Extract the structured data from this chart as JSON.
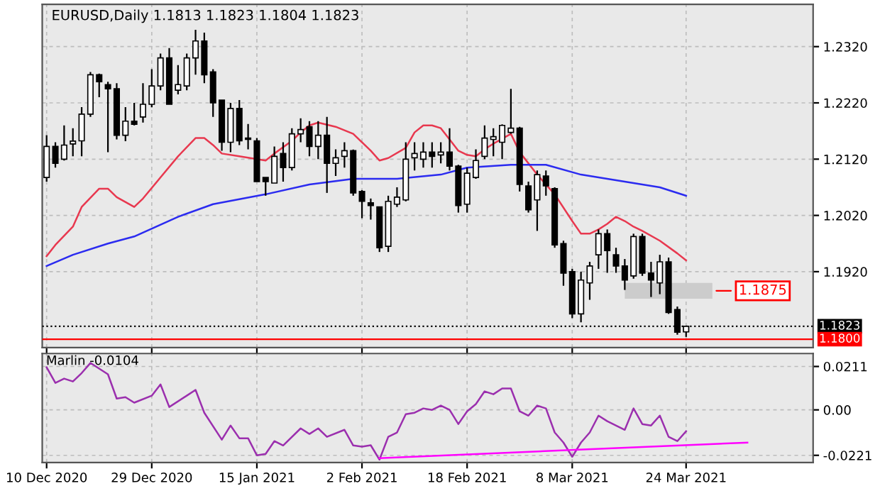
{
  "chart_data": [
    {
      "type": "candlestick",
      "title": "EURUSD,Daily 1.1813 1.1823 1.1804 1.1823",
      "categories": [
        null,
        null,
        null,
        null,
        null,
        null,
        null,
        null,
        null,
        null,
        null,
        null,
        null,
        null,
        null,
        null,
        null,
        null,
        null,
        null,
        null,
        null,
        null,
        null,
        null,
        null,
        null,
        null,
        null,
        null,
        null,
        null,
        null,
        null,
        null,
        null,
        null,
        null,
        null,
        null,
        null,
        null,
        null,
        null,
        null,
        null,
        null,
        null,
        null,
        null,
        null,
        null,
        null,
        null,
        null,
        null,
        null,
        null,
        null,
        null,
        null,
        null,
        null,
        null,
        null,
        null,
        null,
        null,
        null,
        null,
        null,
        null,
        null,
        null,
        null,
        null,
        null,
        null,
        null,
        null,
        null,
        null,
        null,
        null,
        null,
        null,
        null,
        null
      ],
      "ohlc": [
        [
          1.20875,
          1.21625,
          1.208,
          1.21425
        ],
        [
          1.21425,
          1.215,
          1.2105,
          1.21125
        ],
        [
          1.212,
          1.218,
          1.21175,
          1.2145
        ],
        [
          1.2147,
          1.2175,
          1.2125,
          1.2152
        ],
        [
          1.21525,
          1.22125,
          1.2125,
          1.22
        ],
        [
          1.22,
          1.2275,
          1.2195,
          1.227
        ],
        [
          1.227,
          1.2272,
          1.223,
          1.22575
        ],
        [
          1.22525,
          1.22575,
          1.21325,
          1.2245
        ],
        [
          1.2245,
          1.2255,
          1.2155,
          1.21625
        ],
        [
          1.21625,
          1.22125,
          1.2152,
          1.21875
        ],
        [
          1.21875,
          1.222,
          1.218,
          1.2182
        ],
        [
          1.2195,
          1.2255,
          1.2185,
          1.22175
        ],
        [
          1.22175,
          1.228,
          1.2212,
          1.225
        ],
        [
          1.225,
          1.23075,
          1.22425,
          1.23
        ],
        [
          1.23,
          1.23175,
          1.22175,
          1.22175
        ],
        [
          1.22425,
          1.2287,
          1.2235,
          1.22525
        ],
        [
          1.225,
          1.23075,
          1.22425,
          1.23
        ],
        [
          1.23,
          1.235,
          1.227,
          1.233
        ],
        [
          1.233,
          1.2345,
          1.2255,
          1.227
        ],
        [
          1.2275,
          1.228,
          1.2195,
          1.222
        ],
        [
          1.2225,
          1.2225,
          1.2135,
          1.215
        ],
        [
          1.215,
          1.222,
          1.21325,
          1.221
        ],
        [
          1.221,
          1.2225,
          1.2145,
          1.21525
        ],
        [
          1.21575,
          1.21825,
          1.21375,
          1.2155
        ],
        [
          1.21525,
          1.21575,
          1.208,
          1.208
        ],
        [
          1.20875,
          1.20875,
          1.2055,
          1.208
        ],
        [
          1.20775,
          1.21425,
          1.20775,
          1.2125
        ],
        [
          1.213,
          1.215,
          1.208,
          1.2105
        ],
        [
          1.2105,
          1.2175,
          1.21,
          1.2165
        ],
        [
          1.2165,
          1.21925,
          1.215,
          1.21725
        ],
        [
          1.21775,
          1.21875,
          1.2125,
          1.21425
        ],
        [
          1.21425,
          1.21875,
          1.212,
          1.21625
        ],
        [
          1.21625,
          1.2195,
          1.206,
          1.21125
        ],
        [
          1.21125,
          1.21375,
          1.209,
          1.21225
        ],
        [
          1.2125,
          1.215,
          1.2105,
          1.2135
        ],
        [
          1.2135,
          1.2137,
          1.2055,
          1.206
        ],
        [
          1.20625,
          1.2065,
          1.2015,
          1.2045
        ],
        [
          1.20425,
          1.205,
          1.20125,
          1.20375
        ],
        [
          1.2035,
          1.2035,
          1.1955,
          1.19625
        ],
        [
          1.1965,
          1.2055,
          1.1955,
          1.2045
        ],
        [
          1.204,
          1.207,
          1.2035,
          1.20525
        ],
        [
          1.20475,
          1.215,
          1.2045,
          1.212
        ],
        [
          1.21225,
          1.215,
          1.21,
          1.213
        ],
        [
          1.212,
          1.215,
          1.2105,
          1.21325
        ],
        [
          1.21325,
          1.215,
          1.2105,
          1.2125
        ],
        [
          1.21275,
          1.215,
          1.21125,
          1.21325
        ],
        [
          1.21325,
          1.2175,
          1.21,
          1.21075
        ],
        [
          1.21075,
          1.211,
          1.2025,
          1.20375
        ],
        [
          1.204,
          1.2105,
          1.2025,
          1.2095
        ],
        [
          1.20875,
          1.21375,
          1.2085,
          1.21175
        ],
        [
          1.2125,
          1.218,
          1.212,
          1.21575
        ],
        [
          1.2155,
          1.2175,
          1.2125,
          1.216
        ],
        [
          1.215,
          1.2182,
          1.212,
          1.218
        ],
        [
          1.21675,
          1.2245,
          1.2165,
          1.2175
        ],
        [
          1.2175,
          1.21775,
          1.20625,
          1.2075
        ],
        [
          1.20725,
          1.208,
          1.2025,
          1.203
        ],
        [
          1.20475,
          1.21,
          1.19925,
          1.20925
        ],
        [
          1.209,
          1.21,
          1.2055,
          1.20725
        ],
        [
          1.20675,
          1.207,
          1.19625,
          1.19675
        ],
        [
          1.197,
          1.1975,
          1.1895,
          1.19175
        ],
        [
          1.192,
          1.1925,
          1.18375,
          1.1845
        ],
        [
          1.1845,
          1.192,
          1.183,
          1.1905
        ],
        [
          1.19,
          1.19375,
          1.187,
          1.193
        ],
        [
          1.195,
          1.1995,
          1.1925,
          1.19875
        ],
        [
          1.19875,
          1.1995,
          1.1918,
          1.19575
        ],
        [
          1.195,
          1.19625,
          1.1918,
          1.193
        ],
        [
          1.193,
          1.19425,
          1.18875,
          1.1905
        ],
        [
          1.19125,
          1.19875,
          1.19075,
          1.19825
        ],
        [
          1.19825,
          1.19875,
          1.19125,
          1.19175
        ],
        [
          1.19175,
          1.19375,
          1.1875,
          1.1905
        ],
        [
          1.19,
          1.195,
          1.188,
          1.19375
        ],
        [
          1.19375,
          1.1945,
          1.1845,
          1.18475
        ],
        [
          1.18525,
          1.1858,
          1.1808,
          1.18125
        ],
        [
          1.1813,
          1.1823,
          1.1804,
          1.1823
        ],
        null,
        null,
        null,
        null,
        null,
        null,
        null,
        null,
        null,
        null,
        null,
        null,
        null,
        null
      ],
      "series": [
        {
          "type": "line",
          "color": "#e8384f",
          "values": [
            1.19475,
            1.19675,
            null,
            1.2,
            1.2035,
            null,
            1.20675,
            1.20675,
            1.20525,
            null,
            1.2035,
            1.205,
            null,
            1.20875,
            null,
            1.2125,
            null,
            1.21575,
            1.21575,
            1.2145,
            1.213,
            null,
            1.2125,
            null,
            1.212,
            1.21175,
            1.213,
            null,
            1.21525,
            1.21675,
            1.218,
            1.2185,
            null,
            1.21775,
            null,
            1.2165,
            null,
            1.2135,
            1.21175,
            1.2122,
            null,
            1.214,
            1.21675,
            1.218,
            1.218,
            1.2175,
            1.2155,
            1.2135,
            1.21275,
            1.2125,
            1.21375,
            1.21475,
            null,
            1.2165,
            1.21325,
            null,
            1.20925,
            null,
            1.20575,
            null,
            1.201,
            1.19875,
            1.19875,
            1.1995,
            1.2005,
            1.20175,
            1.201,
            1.2,
            1.19925,
            null,
            1.1975,
            null,
            1.19525,
            1.194,
            null,
            null,
            null,
            null,
            null,
            null,
            null,
            null,
            null,
            null,
            null,
            null,
            null,
            null
          ]
        },
        {
          "type": "line",
          "color": "#2b2bf0",
          "values": [
            1.193,
            null,
            null,
            1.195,
            null,
            null,
            null,
            1.197,
            null,
            null,
            1.19825,
            null,
            null,
            null,
            null,
            1.20175,
            null,
            null,
            null,
            1.204,
            null,
            null,
            null,
            null,
            null,
            1.20575,
            null,
            null,
            null,
            null,
            1.2075,
            null,
            null,
            null,
            null,
            1.2085,
            null,
            null,
            null,
            null,
            1.2085,
            null,
            null,
            null,
            null,
            1.20925,
            null,
            null,
            1.2105,
            null,
            null,
            null,
            null,
            1.211,
            null,
            null,
            null,
            1.211,
            null,
            null,
            null,
            1.20925,
            null,
            null,
            null,
            null,
            1.208,
            null,
            null,
            null,
            1.207,
            null,
            null,
            1.2055,
            null,
            null,
            null,
            null,
            null,
            null,
            null,
            null,
            null,
            null,
            null,
            null,
            null,
            null
          ]
        }
      ],
      "ylim": [
        1.1785,
        1.2395
      ],
      "yticks": [
        {
          "value": 1.232,
          "label": "1.2320"
        },
        {
          "value": 1.222,
          "label": "1.2220"
        },
        {
          "value": 1.212,
          "label": "1.2120"
        },
        {
          "value": 1.202,
          "label": "1.2020"
        },
        {
          "value": 1.192,
          "label": "1.1920"
        }
      ],
      "ref_lines": [
        {
          "axis": "y",
          "value": 1.1823,
          "label": "1.1823",
          "color": "#000000",
          "line_style": "dotted"
        },
        {
          "axis": "y",
          "value": 1.18,
          "label": "1.1800",
          "color": "#ff0000",
          "line_style": "solid"
        }
      ],
      "bands": [
        {
          "axis": "y",
          "from": 1.1872,
          "to": 1.19,
          "label": "1.1875",
          "color": "#cccccc"
        }
      ],
      "grid": true,
      "tick_labels": "y"
    },
    {
      "type": "line",
      "title": "Marlin -0.0104",
      "categories": [
        "10 Dec 2020",
        null,
        null,
        null,
        null,
        null,
        null,
        null,
        null,
        null,
        null,
        null,
        "29 Dec 2020",
        null,
        null,
        null,
        null,
        null,
        null,
        null,
        null,
        null,
        null,
        null,
        "15 Jan 2021",
        null,
        null,
        null,
        null,
        null,
        null,
        null,
        null,
        null,
        null,
        null,
        "2 Feb 2021",
        null,
        null,
        null,
        null,
        null,
        null,
        null,
        null,
        null,
        null,
        null,
        "18 Feb 2021",
        null,
        null,
        null,
        null,
        null,
        null,
        null,
        null,
        null,
        null,
        null,
        "8 Mar 2021",
        null,
        null,
        null,
        null,
        null,
        null,
        null,
        null,
        null,
        null,
        null,
        null,
        "24 Mar 2021",
        null,
        null,
        null,
        null,
        null,
        null,
        null,
        null,
        null,
        null,
        null,
        null,
        null,
        null
      ],
      "series": [
        {
          "type": "line",
          "color": "#9b2fae",
          "values": [
            0.0207,
            0.0131,
            0.0152,
            0.0138,
            0.0179,
            0.0228,
            null,
            0.0173,
            0.0055,
            0.0062,
            0.0035,
            null,
            0.0069,
            0.0124,
            0.0014,
            null,
            0.0069,
            0.0097,
            -0.0014,
            null,
            -0.0145,
            -0.0076,
            -0.0138,
            -0.0138,
            -0.0221,
            -0.0214,
            -0.0152,
            -0.0173,
            null,
            -0.009,
            -0.0117,
            -0.009,
            -0.0131,
            null,
            -0.0097,
            -0.0173,
            -0.0179,
            -0.0172,
            -0.0242,
            -0.0131,
            -0.011,
            -0.0021,
            -0.0014,
            0.0007,
            0,
            0.0021,
            0,
            -0.0069,
            -0.0007,
            0.0028,
            0.009,
            0.0076,
            0.0104,
            0.0104,
            -0.0007,
            -0.0028,
            0.0021,
            0.0007,
            -0.011,
            -0.0159,
            -0.0228,
            -0.0159,
            -0.011,
            -0.0028,
            -0.0055,
            null,
            -0.0097,
            0.0007,
            -0.0069,
            -0.0076,
            -0.0028,
            -0.0131,
            -0.0152,
            -0.0104,
            null,
            null,
            null,
            null,
            null,
            null,
            null,
            null,
            null,
            null,
            null,
            null,
            null,
            null
          ]
        },
        {
          "type": "line",
          "color": "#ff00ff",
          "values": [
            null,
            null,
            null,
            null,
            null,
            null,
            null,
            null,
            null,
            null,
            null,
            null,
            null,
            null,
            null,
            null,
            null,
            null,
            null,
            null,
            null,
            null,
            null,
            null,
            null,
            null,
            null,
            null,
            null,
            null,
            null,
            null,
            null,
            null,
            null,
            null,
            null,
            null,
            -0.0235,
            null,
            null,
            null,
            null,
            null,
            null,
            null,
            null,
            null,
            null,
            null,
            null,
            null,
            null,
            null,
            null,
            null,
            null,
            null,
            null,
            null,
            null,
            null,
            null,
            null,
            null,
            null,
            null,
            null,
            null,
            null,
            null,
            null,
            null,
            null,
            null,
            null,
            null,
            null,
            null,
            null,
            -0.0159,
            null,
            null,
            null,
            null,
            null,
            null,
            null
          ]
        }
      ],
      "ylim": [
        -0.0256,
        0.0274
      ],
      "yticks": [
        0.0211,
        {
          "value": 0,
          "label": "0.00"
        },
        -0.0221
      ],
      "grid": true
    }
  ]
}
